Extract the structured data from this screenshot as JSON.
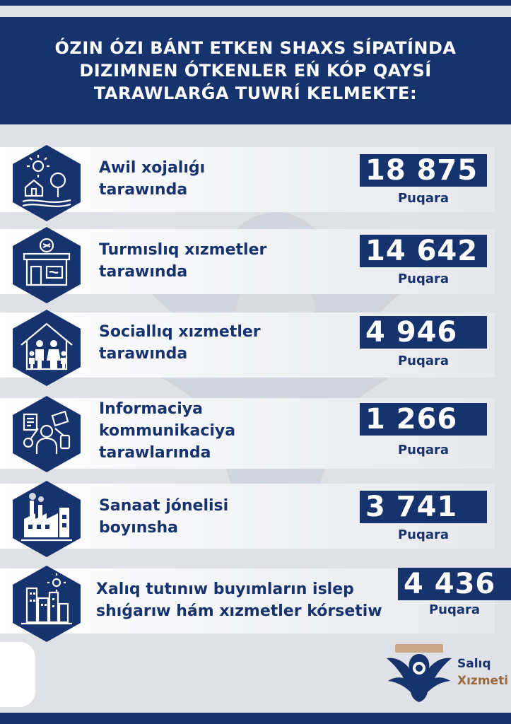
{
  "header": {
    "lines": [
      "ÓZIN ÓZI BÁNT ETKEN SHAXS SÍPATÍNDA",
      "DIZIMNEN ÓTKENLER  EŃ KÓP QAYSÍ",
      "TARAWLARǴA TUWRÍ KELMEKTE:"
    ]
  },
  "rows": [
    {
      "icon": "agriculture-icon",
      "label": [
        "Awil xojalıǵı",
        "tarawında"
      ],
      "value": "18 875",
      "unit": "Puqara"
    },
    {
      "icon": "shop-icon",
      "label": [
        "Turmıslıq xızmetler",
        "tarawında"
      ],
      "value": "14 642",
      "unit": "Puqara"
    },
    {
      "icon": "family-house-icon",
      "label": [
        "Sociallıq xızmetler",
        "tarawında"
      ],
      "value": "4 946",
      "unit": "Puqara"
    },
    {
      "icon": "it-communication-icon",
      "label": [
        "Informaciya",
        "kommunikaciya",
        "tarawlarında"
      ],
      "value": "1 266",
      "unit": "Puqara"
    },
    {
      "icon": "factory-icon",
      "label": [
        "Sanaat jónelisi",
        "boyınsha"
      ],
      "value": "3 741",
      "unit": "Puqara"
    },
    {
      "icon": "city-buildings-icon",
      "label": [
        "Xalıq tutınıw buyımların islep",
        "shıǵarıw hám xızmetler kórsetiw"
      ],
      "value": "4 436",
      "unit": "Puqara"
    }
  ],
  "logo": {
    "name_line1": "Salıq",
    "name_line2": "Xızmeti",
    "icon": "eagle-emblem-icon"
  },
  "colors": {
    "primary": "#17336d",
    "accent": "#9a6a3e",
    "background": "#dfe1e6"
  }
}
